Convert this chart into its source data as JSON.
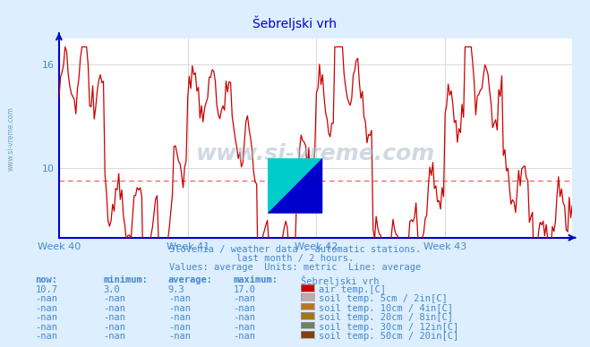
{
  "title": "Šebreljski vrh",
  "background_color": "#ddeeff",
  "plot_bg_color": "#ffffff",
  "line_color": "#cc0000",
  "average_line_color": "#ff6666",
  "average_value": 9.3,
  "y_min": 6.0,
  "y_max": 17.5,
  "y_ticks": [
    10,
    16
  ],
  "x_labels": [
    "Week 40",
    "Week 41",
    "Week 42",
    "Week 43"
  ],
  "subtitle_lines": [
    "Slovenia / weather data - automatic stations.",
    "last month / 2 hours.",
    "Values: average  Units: metric  Line: average"
  ],
  "table_header": [
    "now:",
    "minimum:",
    "average:",
    "maximum:",
    "Šebreljski vrh"
  ],
  "table_rows": [
    [
      "10.7",
      "3.0",
      "9.3",
      "17.0",
      "#cc0000",
      "air temp.[C]"
    ],
    [
      "-nan",
      "-nan",
      "-nan",
      "-nan",
      "#c8a8a8",
      "soil temp. 5cm / 2in[C]"
    ],
    [
      "-nan",
      "-nan",
      "-nan",
      "-nan",
      "#b87820",
      "soil temp. 10cm / 4in[C]"
    ],
    [
      "-nan",
      "-nan",
      "-nan",
      "-nan",
      "#a07818",
      "soil temp. 20cm / 8in[C]"
    ],
    [
      "-nan",
      "-nan",
      "-nan",
      "-nan",
      "#708060",
      "soil temp. 30cm / 12in[C]"
    ],
    [
      "-nan",
      "-nan",
      "-nan",
      "-nan",
      "#804010",
      "soil temp. 50cm / 20in[C]"
    ]
  ],
  "watermark": "www.si-vreme.com",
  "axis_color": "#0000cc",
  "grid_color": "#cccccc",
  "text_color": "#4488cc",
  "title_color": "#0000cc",
  "sidebar_text": "www.si-vreme.com"
}
